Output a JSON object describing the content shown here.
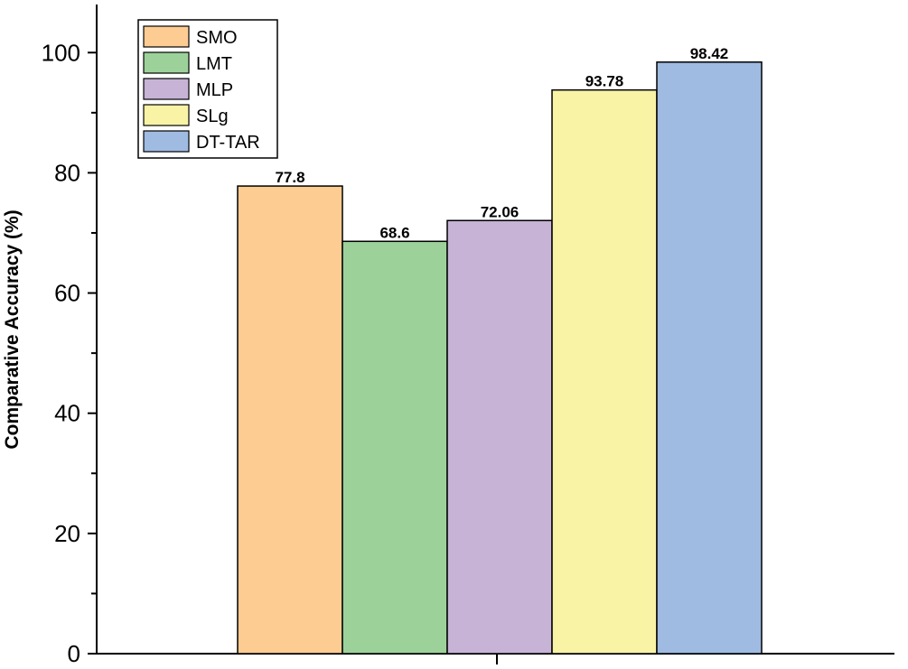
{
  "chart_data": {
    "type": "bar",
    "title": "",
    "xlabel": "",
    "ylabel": "Comparative Accuracy (%)",
    "ylim": [
      0,
      108
    ],
    "y_ticks": [
      0,
      20,
      40,
      60,
      80,
      100
    ],
    "legend_position": "top-left",
    "grid": false,
    "series": [
      {
        "name": "SMO",
        "value": 77.8,
        "label": "77.8",
        "color": "#FDCC92"
      },
      {
        "name": "LMT",
        "value": 68.6,
        "label": "68.6",
        "color": "#9CD29A"
      },
      {
        "name": "MLP",
        "value": 72.06,
        "label": "72.06",
        "color": "#C6B3D6"
      },
      {
        "name": "SLg",
        "value": 93.78,
        "label": "93.78",
        "color": "#F9F3A6"
      },
      {
        "name": "DT-TAR",
        "value": 98.42,
        "label": "98.42",
        "color": "#9FBBE2"
      }
    ]
  }
}
